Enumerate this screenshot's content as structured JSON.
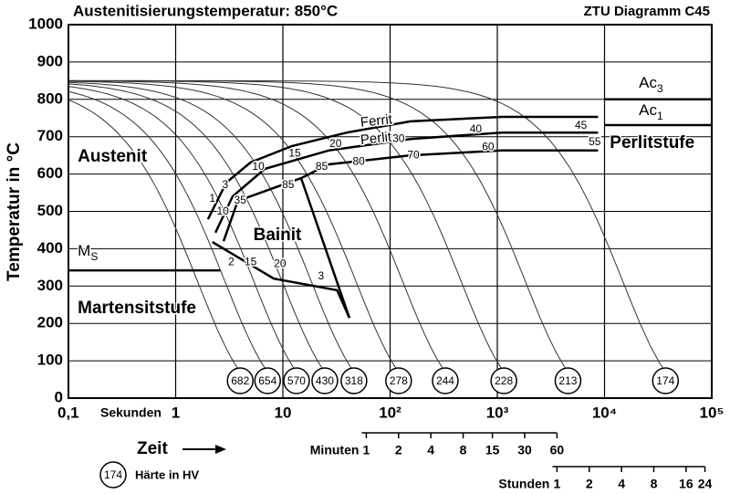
{
  "chart_data": {
    "type": "line",
    "title": "Austenitisierungstemperatur: 850°C",
    "subtitle": "ZTU Diagramm C45",
    "y_label": "Temperatur in °C",
    "x_label": "Zeit",
    "x_unit_label": "Sekunden",
    "xscale": "log",
    "xlim": [
      0.1,
      100000
    ],
    "xticks": [
      {
        "value": 0.1,
        "label": "0,1"
      },
      1,
      10,
      {
        "value": 100,
        "label": "10²"
      },
      {
        "value": 1000,
        "label": "10³"
      },
      {
        "value": 10000,
        "label": "10⁴"
      },
      {
        "value": 100000,
        "label": "10⁵"
      }
    ],
    "ylim": [
      0,
      1000
    ],
    "yticks": [
      0,
      100,
      200,
      300,
      400,
      500,
      600,
      700,
      800,
      900,
      1000
    ],
    "grid": true,
    "color": "#000000",
    "series": [
      {
        "name": "Ferrit",
        "x": [
          2.0,
          2.97,
          5.0,
          12.2,
          39.4,
          155,
          1100,
          8700
        ],
        "values": [
          479,
          577,
          631,
          675,
          711,
          741,
          753,
          753
        ]
      },
      {
        "name": "Perlit",
        "x": [
          2.35,
          3.4,
          6.8,
          26.7,
          155,
          1100,
          8700
        ],
        "values": [
          443,
          540,
          614,
          663,
          694,
          711,
          711
        ]
      },
      {
        "x": [
          2.8,
          3.8,
          14.8,
          26.7,
          155,
          1100,
          8700
        ],
        "values": [
          420,
          528,
          589,
          626,
          650,
          663,
          663
        ]
      },
      {
        "x": [
          14.8,
          41.7
        ],
        "values": [
          589,
          215
        ]
      },
      {
        "x": [
          2.2,
          8.2,
          32,
          41.7
        ],
        "values": [
          418,
          320,
          289,
          215
        ]
      },
      {
        "x": [
          0.1,
          2.6
        ],
        "values": [
          342,
          342
        ]
      },
      {
        "x": [
          10000,
          100000
        ],
        "values": [
          800,
          800
        ]
      },
      {
        "x": [
          10000,
          100000
        ],
        "values": [
          731,
          731
        ]
      }
    ],
    "regions": [
      {
        "text": "Austenit",
        "x": 0.122,
        "y": 645
      },
      {
        "text": "Perlitstufe",
        "x": 11200,
        "y": 682
      },
      {
        "text": "Bainit",
        "x": 5.3,
        "y": 435
      },
      {
        "text": "Martensitstufe",
        "x": 0.122,
        "y": 240
      }
    ],
    "symbols": [
      {
        "text": "M",
        "sub": "S",
        "x": 0.122,
        "y": 391
      },
      {
        "text": "Ac",
        "sub": "3",
        "x": 20900,
        "y": 841
      },
      {
        "text": "Ac",
        "sub": "1",
        "x": 20900,
        "y": 768
      }
    ],
    "curve_labels": [
      {
        "text": "1",
        "x": 2.2,
        "y": 533
      },
      {
        "text": "3",
        "x": 2.9,
        "y": 570
      },
      {
        "text": "10",
        "x": 5.9,
        "y": 619
      },
      {
        "text": "15",
        "x": 12.9,
        "y": 655
      },
      {
        "text": "20",
        "x": 31,
        "y": 680
      },
      {
        "text": "30",
        "x": 120,
        "y": 694
      },
      {
        "text": "40",
        "x": 630,
        "y": 719
      },
      {
        "text": "45",
        "x": 6030,
        "y": 729
      },
      {
        "text": "10",
        "x": 2.75,
        "y": 499
      },
      {
        "text": "35",
        "x": 4.0,
        "y": 528
      },
      {
        "text": "85",
        "x": 23,
        "y": 619
      },
      {
        "text": "80",
        "x": 51,
        "y": 633
      },
      {
        "text": "70",
        "x": 165,
        "y": 650
      },
      {
        "text": "60",
        "x": 820,
        "y": 672
      },
      {
        "text": "55",
        "x": 8100,
        "y": 685
      },
      {
        "text": "85",
        "x": 11.2,
        "y": 570
      },
      {
        "text": "2",
        "x": 3.3,
        "y": 364
      },
      {
        "text": "15",
        "x": 5.0,
        "y": 364
      },
      {
        "text": "20",
        "x": 9.4,
        "y": 359
      },
      {
        "text": "3",
        "x": 22.7,
        "y": 325
      }
    ],
    "hardness": {
      "x": [
        4.0,
        7.2,
        13.4,
        24.6,
        46,
        120,
        327,
        1150,
        4560,
        37000
      ],
      "values": [
        682,
        654,
        570,
        430,
        318,
        278,
        244,
        228,
        213,
        174
      ]
    },
    "minutes_axis": {
      "label": "Minuten",
      "ticks": [
        1,
        2,
        4,
        8,
        15,
        30,
        60
      ]
    },
    "hours_axis": {
      "label": "Stunden",
      "ticks": [
        1,
        2,
        4,
        8,
        16,
        24
      ]
    },
    "hardness_legend": {
      "value": 174,
      "label": "Härte in HV"
    }
  }
}
